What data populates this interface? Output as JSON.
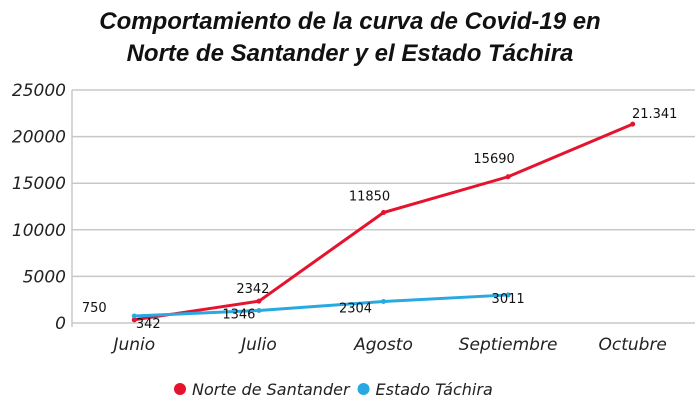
{
  "chart_data": {
    "type": "line",
    "title_line1": "Comportamiento de la curva de Covid-19 en",
    "title_line2": "Norte de Santander y el Estado Táchira",
    "categories": [
      "Junio",
      "Julio",
      "Agosto",
      "Septiembre",
      "Octubre"
    ],
    "ylim": [
      0,
      25000
    ],
    "yticks": [
      0,
      5000,
      10000,
      15000,
      20000,
      25000
    ],
    "ytick_labels": [
      "0",
      "5000",
      "10000",
      "15000",
      "20000",
      "25000"
    ],
    "grid": true,
    "legend_position": "bottom",
    "series": [
      {
        "name": "Norte de Santander",
        "color": "#e5132e",
        "values": [
          342,
          2342,
          11850,
          15690,
          21341
        ],
        "labels": [
          "342",
          "2342",
          "11850",
          "15690",
          "21.341"
        ]
      },
      {
        "name": "Estado Táchira",
        "color": "#29a9e1",
        "values": [
          750,
          1346,
          2304,
          3011,
          null
        ],
        "labels": [
          "750",
          "1346",
          "2304",
          "3011",
          ""
        ]
      }
    ]
  }
}
